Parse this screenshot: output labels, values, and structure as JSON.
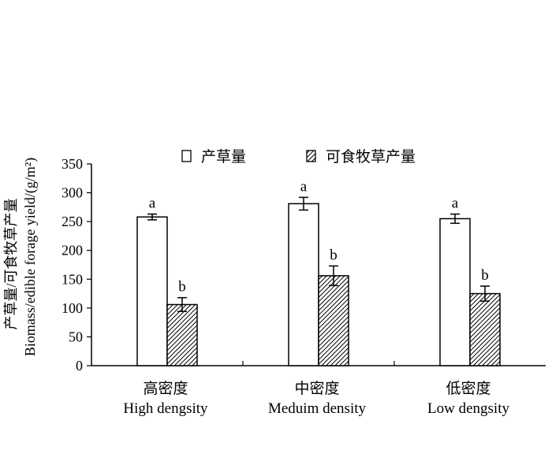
{
  "chart_data": {
    "type": "bar",
    "categories": [
      {
        "cn": "高密度",
        "en": "High dengsity"
      },
      {
        "cn": "中密度",
        "en": "Meduim density"
      },
      {
        "cn": "低密度",
        "en": "Low dengsity"
      }
    ],
    "series": [
      {
        "name": "产草量",
        "pattern": "open",
        "values": [
          258,
          281,
          255
        ],
        "errors": [
          5,
          11,
          8
        ],
        "letters": [
          "a",
          "a",
          "a"
        ]
      },
      {
        "name": "可食牧草产量",
        "pattern": "hatched",
        "values": [
          106,
          156,
          125
        ],
        "errors": [
          12,
          17,
          13
        ],
        "letters": [
          "b",
          "b",
          "b"
        ]
      }
    ],
    "ylabel_cn": "产草量/可食牧草产量",
    "ylabel_en": "Biomass/edible forage yield/(g/m²)",
    "ylim": [
      0,
      350
    ],
    "yticks": [
      "0",
      "50",
      "100",
      "150",
      "200",
      "250",
      "300",
      "350"
    ],
    "grid": false,
    "legend_position": "top",
    "colors": {
      "bar_fill": "#ffffff",
      "stroke": "#000000",
      "hatch": "#000000"
    }
  }
}
